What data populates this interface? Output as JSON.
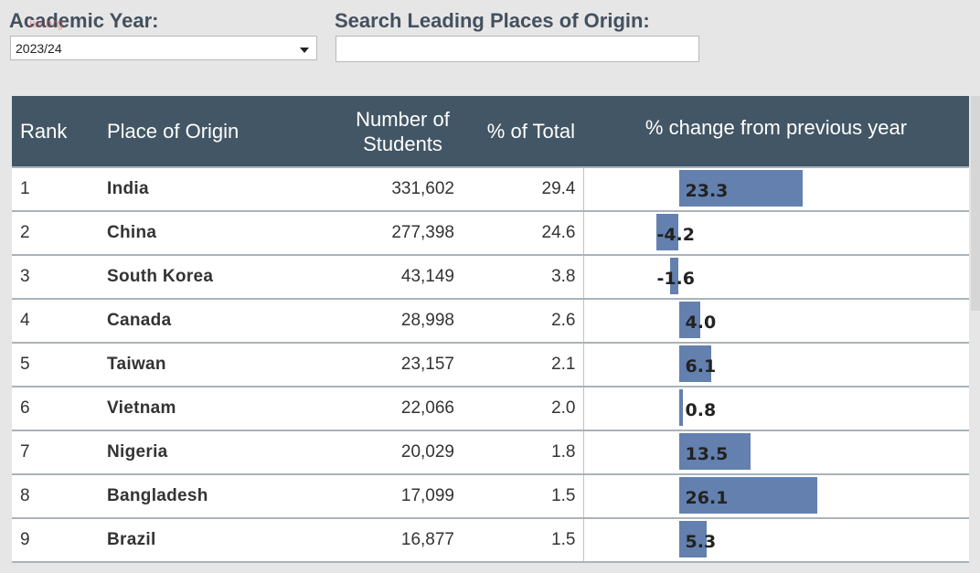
{
  "filters": {
    "year_label": "Academic Year:",
    "year_value": "2023/24",
    "search_label": "Search Leading Places of Origin:",
    "search_value": ""
  },
  "table": {
    "headers": {
      "rank": "Rank",
      "place": "Place of Origin",
      "students_line1": "Number of",
      "students_line2": "Students",
      "pct": "% of Total",
      "change": "% change from previous year"
    },
    "rows": [
      {
        "rank": "1",
        "place": "India",
        "students": "331,602",
        "pct": "29.4",
        "change_label": "23.3",
        "change": 23.3
      },
      {
        "rank": "2",
        "place": "China",
        "students": "277,398",
        "pct": "24.6",
        "change_label": "-4.2",
        "change": -4.2
      },
      {
        "rank": "3",
        "place": "South Korea",
        "students": "43,149",
        "pct": "3.8",
        "change_label": "-1.6",
        "change": -1.6
      },
      {
        "rank": "4",
        "place": "Canada",
        "students": "28,998",
        "pct": "2.6",
        "change_label": "4.0",
        "change": 4.0
      },
      {
        "rank": "5",
        "place": "Taiwan",
        "students": "23,157",
        "pct": "2.1",
        "change_label": "6.1",
        "change": 6.1
      },
      {
        "rank": "6",
        "place": "Vietnam",
        "students": "22,066",
        "pct": "2.0",
        "change_label": "0.8",
        "change": 0.8
      },
      {
        "rank": "7",
        "place": "Nigeria",
        "students": "20,029",
        "pct": "1.8",
        "change_label": "13.5",
        "change": 13.5
      },
      {
        "rank": "8",
        "place": "Bangladesh",
        "students": "17,099",
        "pct": "1.5",
        "change_label": "26.1",
        "change": 26.1
      },
      {
        "rank": "9",
        "place": "Brazil",
        "students": "16,877",
        "pct": "1.5",
        "change_label": "5.3",
        "change": 5.3
      }
    ]
  },
  "colors": {
    "header_bg": "#425665",
    "bar": "#6380ae",
    "page_bg": "#e6e6e6"
  }
}
